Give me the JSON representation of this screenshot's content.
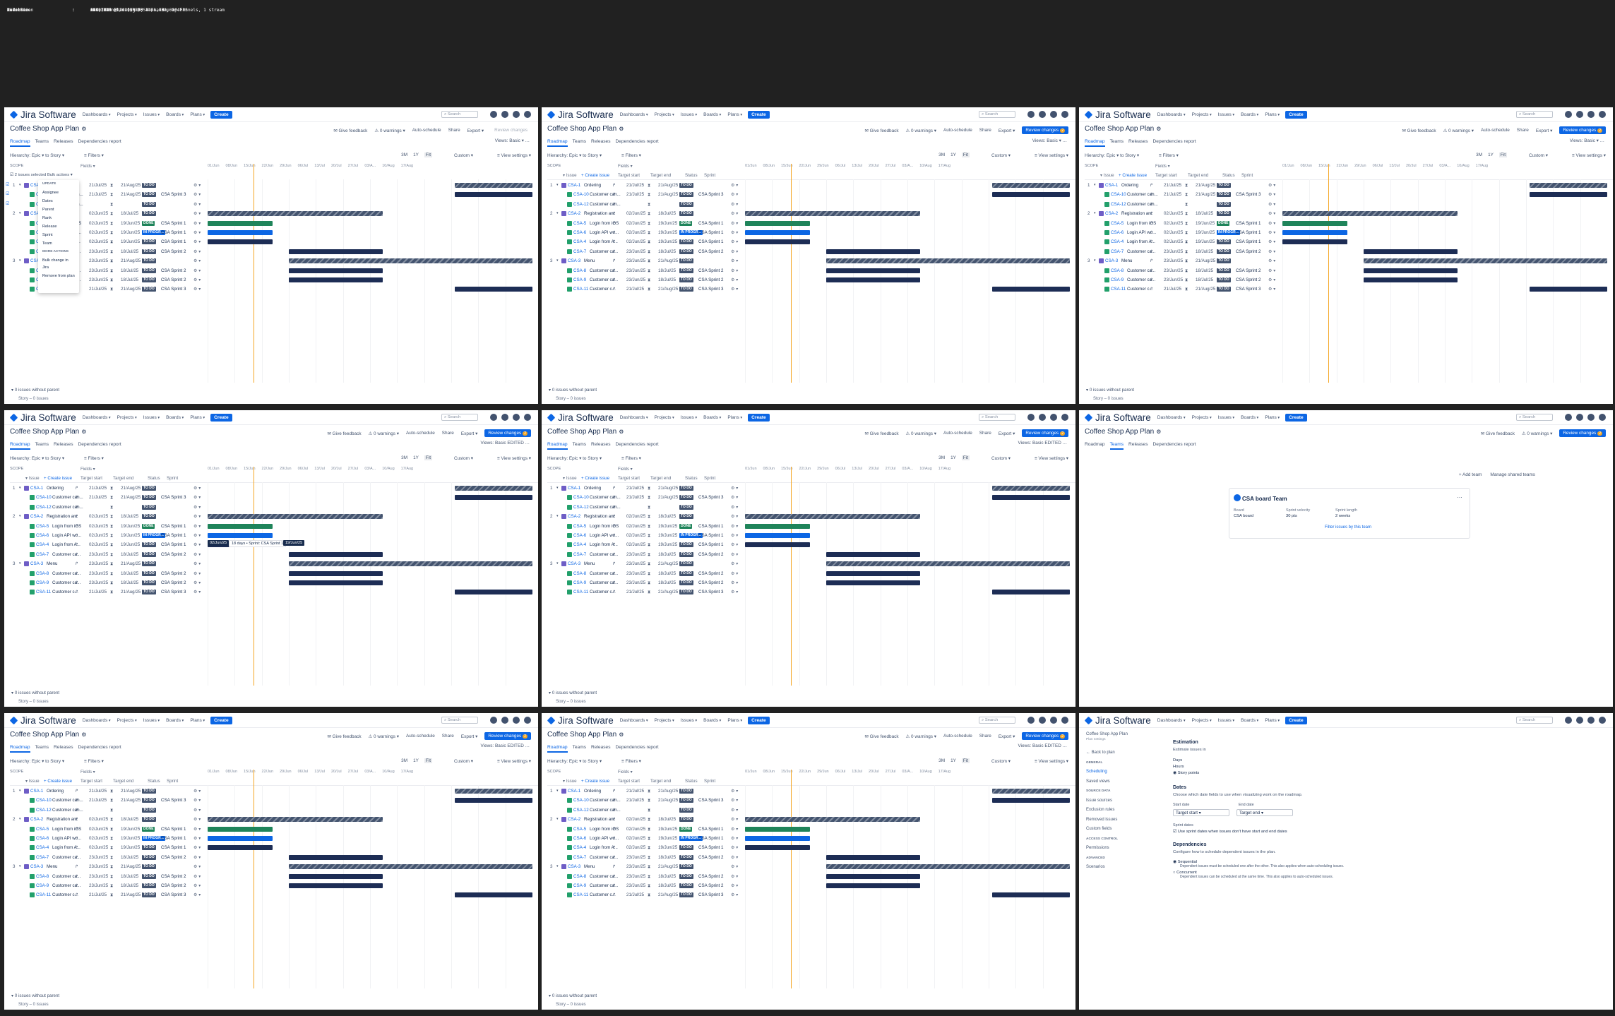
{
  "file_info": [
    {
      "key": "File Name",
      "value": "004. 8.3 Planning on a Roadmap.mp4"
    },
    {
      "key": "File Size",
      "value": "22.27 MB"
    },
    {
      "key": "Resolution",
      "value": "1280x720 / 30.000 FPS"
    },
    {
      "key": "Duration",
      "value": "00:07:18"
    },
    {
      "key": "Video",
      "value": "AVC (Main@L3.2), 293 kb/s, 30.000 FPS"
    },
    {
      "key": "Audio",
      "value": "AAC, 126 kb/s (VBR), 44.1 kHz, 2 channels, 1 stream"
    }
  ],
  "app": {
    "logo": "Jira Software",
    "nav": [
      "Dashboards",
      "Projects",
      "Issues",
      "Boards",
      "Plans"
    ],
    "create": "Create",
    "search_placeholder": "Search"
  },
  "plan": {
    "title": "Coffee Shop App Plan",
    "give_feedback": "Give feedback",
    "warnings": "0 warnings",
    "auto_schedule": "Auto-schedule",
    "share": "Share",
    "export": "Export",
    "review_changes": "Review changes",
    "tabs": [
      "Roadmap",
      "Teams",
      "Releases",
      "Dependencies report"
    ],
    "views_label": "Views:",
    "views_value": "Basic",
    "edited": "EDITED"
  },
  "toolbar": {
    "hierarchy_label": "Hierarchy:",
    "from": "Epic",
    "to_label": "to",
    "to": "Story",
    "filters": "Filters",
    "zoom": [
      "3M",
      "1Y",
      "Fit"
    ],
    "custom": "Custom",
    "view_settings": "View settings",
    "fields": "Fields",
    "scope": "SCOPE",
    "dates": [
      "01/Jun",
      "08/Jun",
      "15/Jun",
      "22/Jun",
      "29/Jun",
      "06/Jul",
      "13/Jul",
      "20/Jul",
      "27/Jul",
      "03/A...",
      "10/Aug",
      "17/Aug"
    ]
  },
  "columns": {
    "issue": "Issue",
    "create_issue": "+ Create issue",
    "target_start": "Target start",
    "target_end": "Target end",
    "status": "Status",
    "sprint": "Sprint"
  },
  "rows": [
    {
      "num": "1",
      "key": "CSA-1",
      "summary": "Ordering",
      "type": "epic",
      "start": "21/Jul/25",
      "end": "21/Aug/25",
      "status": "TO DO",
      "sprint": "",
      "bar": "striped",
      "b0": 0.76,
      "b1": 1.0
    },
    {
      "num": "",
      "key": "CSA-10",
      "summary": "Customer can...",
      "type": "story",
      "start": "21/Jul/25",
      "end": "21/Aug/25",
      "status": "TO DO",
      "sprint": "CSA Sprint 3",
      "bar": "navy",
      "b0": 0.76,
      "b1": 1.0
    },
    {
      "num": "",
      "key": "CSA-12",
      "summary": "Customer can...",
      "type": "story",
      "start": "",
      "end": "",
      "status": "TO DO",
      "sprint": "",
      "bar": "",
      "b0": 0,
      "b1": 0
    },
    {
      "num": "2",
      "key": "CSA-2",
      "summary": "Registration and Au...",
      "type": "epic",
      "start": "02/Jun/25",
      "end": "18/Jul/25",
      "status": "TO DO",
      "sprint": "",
      "bar": "striped",
      "b0": 0.0,
      "b1": 0.54
    },
    {
      "num": "",
      "key": "CSA-5",
      "summary": "Login from iOS",
      "type": "story",
      "start": "02/Jun/25",
      "end": "19/Jun/25",
      "status": "DONE",
      "sprint": "CSA Sprint 1",
      "bar": "green",
      "b0": 0.0,
      "b1": 0.2
    },
    {
      "num": "",
      "key": "CSA-6",
      "summary": "Login API wo...",
      "type": "story",
      "start": "02/Jun/25",
      "end": "19/Jun/25",
      "status": "IN PROGR...",
      "sprint": "CSA Sprint 1",
      "bar": "blue",
      "b0": 0.0,
      "b1": 0.2
    },
    {
      "num": "",
      "key": "CSA-4",
      "summary": "Login from A...",
      "type": "story",
      "start": "02/Jun/25",
      "end": "19/Jun/25",
      "status": "TO DO",
      "sprint": "CSA Sprint 1",
      "bar": "navy",
      "b0": 0.0,
      "b1": 0.2
    },
    {
      "num": "",
      "key": "CSA-7",
      "summary": "Customer ca...",
      "type": "story",
      "start": "23/Jun/25",
      "end": "18/Jul/25",
      "status": "TO DO",
      "sprint": "CSA Sprint 2",
      "bar": "navy",
      "b0": 0.25,
      "b1": 0.54
    },
    {
      "num": "3",
      "key": "CSA-3",
      "summary": "Menu",
      "type": "epic",
      "start": "23/Jun/25",
      "end": "21/Aug/25",
      "status": "TO DO",
      "sprint": "",
      "bar": "striped",
      "b0": 0.25,
      "b1": 1.0
    },
    {
      "num": "",
      "key": "CSA-8",
      "summary": "Customer ca...",
      "type": "story",
      "start": "23/Jun/25",
      "end": "18/Jul/25",
      "status": "TO DO",
      "sprint": "CSA Sprint 2",
      "bar": "navy",
      "b0": 0.25,
      "b1": 0.54
    },
    {
      "num": "",
      "key": "CSA-9",
      "summary": "Customer ca...",
      "type": "story",
      "start": "23/Jun/25",
      "end": "18/Jul/25",
      "status": "TO DO",
      "sprint": "CSA Sprint 2",
      "bar": "navy",
      "b0": 0.25,
      "b1": 0.54
    },
    {
      "num": "",
      "key": "CSA-11",
      "summary": "Customer c...",
      "type": "story",
      "start": "21/Jul/25",
      "end": "21/Aug/25",
      "status": "TO DO",
      "sprint": "CSA Sprint 3",
      "bar": "navy",
      "b0": 0.76,
      "b1": 1.0
    }
  ],
  "footer": {
    "no_parent": "0 issues without parent",
    "story_count": "Story – 0 issues"
  },
  "bulk": {
    "selected": "2 issues selected",
    "button": "Bulk actions",
    "menu": [
      "UPDATE",
      "Assignee",
      "Dates",
      "Parent",
      "Rank",
      "Release",
      "Sprint",
      "Team",
      "MORE ACTIONS",
      "Bulk change in Jira",
      "Remove from plan"
    ]
  },
  "tooltips": {
    "t1_start": "02/Jun/25",
    "t1_mid": "18 days • Sprint: CSA Sprint 1",
    "t1_end": "19/Jun/25"
  },
  "teams": {
    "add_team": "+ Add team",
    "manage": "Manage shared teams",
    "card_title": "CSA board Team",
    "board_label": "Board",
    "board_value": "CSA board",
    "velocity_label": "Sprint velocity",
    "velocity_value": "30 pts",
    "length_label": "Sprint length",
    "length_value": "2 weeks",
    "filter_link": "Filter issues by this team"
  },
  "settings": {
    "plan_title": "Coffee Shop App Plan",
    "plan_sub": "Plan settings",
    "back": "Back to plan",
    "nav": [
      {
        "t": "GENERAL",
        "cat": true
      },
      {
        "t": "Scheduling",
        "on": true
      },
      {
        "t": "Saved views"
      },
      {
        "t": "SOURCE DATA",
        "cat": true
      },
      {
        "t": "Issue sources"
      },
      {
        "t": "Exclusion rules"
      },
      {
        "t": "Removed issues"
      },
      {
        "t": "Custom fields"
      },
      {
        "t": "ACCESS CONTROL",
        "cat": true
      },
      {
        "t": "Permissions"
      },
      {
        "t": "ADVANCED",
        "cat": true
      },
      {
        "t": "Scenarios"
      }
    ],
    "estimation": "Estimation",
    "estimate_in": "Estimate issues in",
    "est_opts": [
      "Days",
      "Hours",
      "Story points"
    ],
    "dates": "Dates",
    "dates_desc": "Choose which date fields to use when visualizing work on the roadmap.",
    "start_date": "Start date",
    "end_date": "End date",
    "start_value": "Target start",
    "end_value": "Target end",
    "sprint_dates": "Sprint dates",
    "sprint_dates_opt": "Use sprint dates when issues don't have start and end dates",
    "deps": "Dependencies",
    "deps_desc": "Configure how to schedule dependent issues in the plan.",
    "seq": "Sequential",
    "seq_desc": "Dependent issues must be scheduled one after the other. This also applies when auto-scheduling issues.",
    "conc": "Concurrent",
    "conc_desc": "Dependent issues can be scheduled at the same time. This also applies to auto-scheduled issues."
  }
}
